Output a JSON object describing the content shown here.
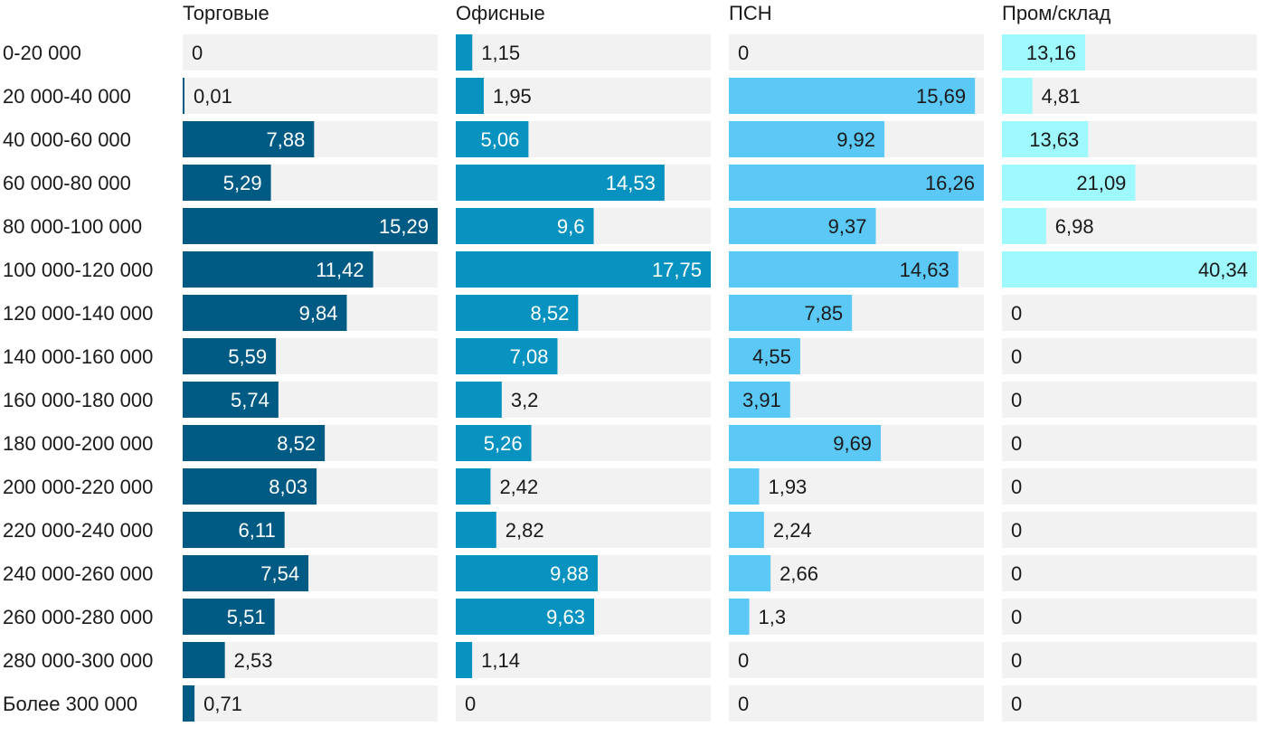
{
  "chart_data": {
    "type": "bar",
    "orientation": "horizontal",
    "layout": "small-multiples",
    "categories": [
      "0-20 000",
      "20 000-40 000",
      "40 000-60 000",
      "60 000-80 000",
      "80 000-100 000",
      "100 000-120 000",
      "120 000-140 000",
      "140 000-160 000",
      "160 000-180 000",
      "180 000-200 000",
      "200 000-220 000",
      "220 000-240 000",
      "240 000-260 000",
      "260 000-280 000",
      "280 000-300 000",
      "Более 300 000"
    ],
    "series": [
      {
        "name": "Торговые",
        "color": "#005b84",
        "values": [
          0,
          0.01,
          7.88,
          5.29,
          15.29,
          11.42,
          9.84,
          5.59,
          5.74,
          8.52,
          8.03,
          6.11,
          7.54,
          5.51,
          2.53,
          0.71
        ],
        "labels": [
          "0",
          "0,01",
          "7,88",
          "5,29",
          "15,29",
          "11,42",
          "9,84",
          "5,59",
          "5,74",
          "8,52",
          "8,03",
          "6,11",
          "7,54",
          "5,51",
          "2,53",
          "0,71"
        ],
        "xlim": [
          0,
          15.29
        ]
      },
      {
        "name": "Офисные",
        "color": "#0892c0",
        "values": [
          1.15,
          1.95,
          5.06,
          14.53,
          9.6,
          17.75,
          8.52,
          7.08,
          3.2,
          5.26,
          2.42,
          2.82,
          9.88,
          9.63,
          1.14,
          0
        ],
        "labels": [
          "1,15",
          "1,95",
          "5,06",
          "14,53",
          "9,6",
          "17,75",
          "8,52",
          "7,08",
          "3,2",
          "5,26",
          "2,42",
          "2,82",
          "9,88",
          "9,63",
          "1,14",
          "0"
        ],
        "xlim": [
          0,
          17.75
        ]
      },
      {
        "name": "ПСН",
        "color": "#5cc8f5",
        "values": [
          0,
          15.69,
          9.92,
          16.26,
          9.37,
          14.63,
          7.85,
          4.55,
          3.91,
          9.69,
          1.93,
          2.24,
          2.66,
          1.3,
          0,
          0
        ],
        "labels": [
          "0",
          "15,69",
          "9,92",
          "16,26",
          "9,37",
          "14,63",
          "7,85",
          "4,55",
          "3,91",
          "9,69",
          "1,93",
          "2,24",
          "2,66",
          "1,3",
          "0",
          "0"
        ],
        "xlim": [
          0,
          16.26
        ]
      },
      {
        "name": "Пром/склад",
        "color": "#9ff8fc",
        "values": [
          13.16,
          4.81,
          13.63,
          21.09,
          6.98,
          40.34,
          0,
          0,
          0,
          0,
          0,
          0,
          0,
          0,
          0,
          0
        ],
        "labels": [
          "13,16",
          "4,81",
          "13,63",
          "21,09",
          "6,98",
          "40,34",
          "0",
          "0",
          "0",
          "0",
          "0",
          "0",
          "0",
          "0",
          "0",
          "0"
        ],
        "xlim": [
          0,
          40.34
        ]
      }
    ],
    "track_color": "#f2f2f2",
    "grid": false,
    "legend": "none"
  }
}
